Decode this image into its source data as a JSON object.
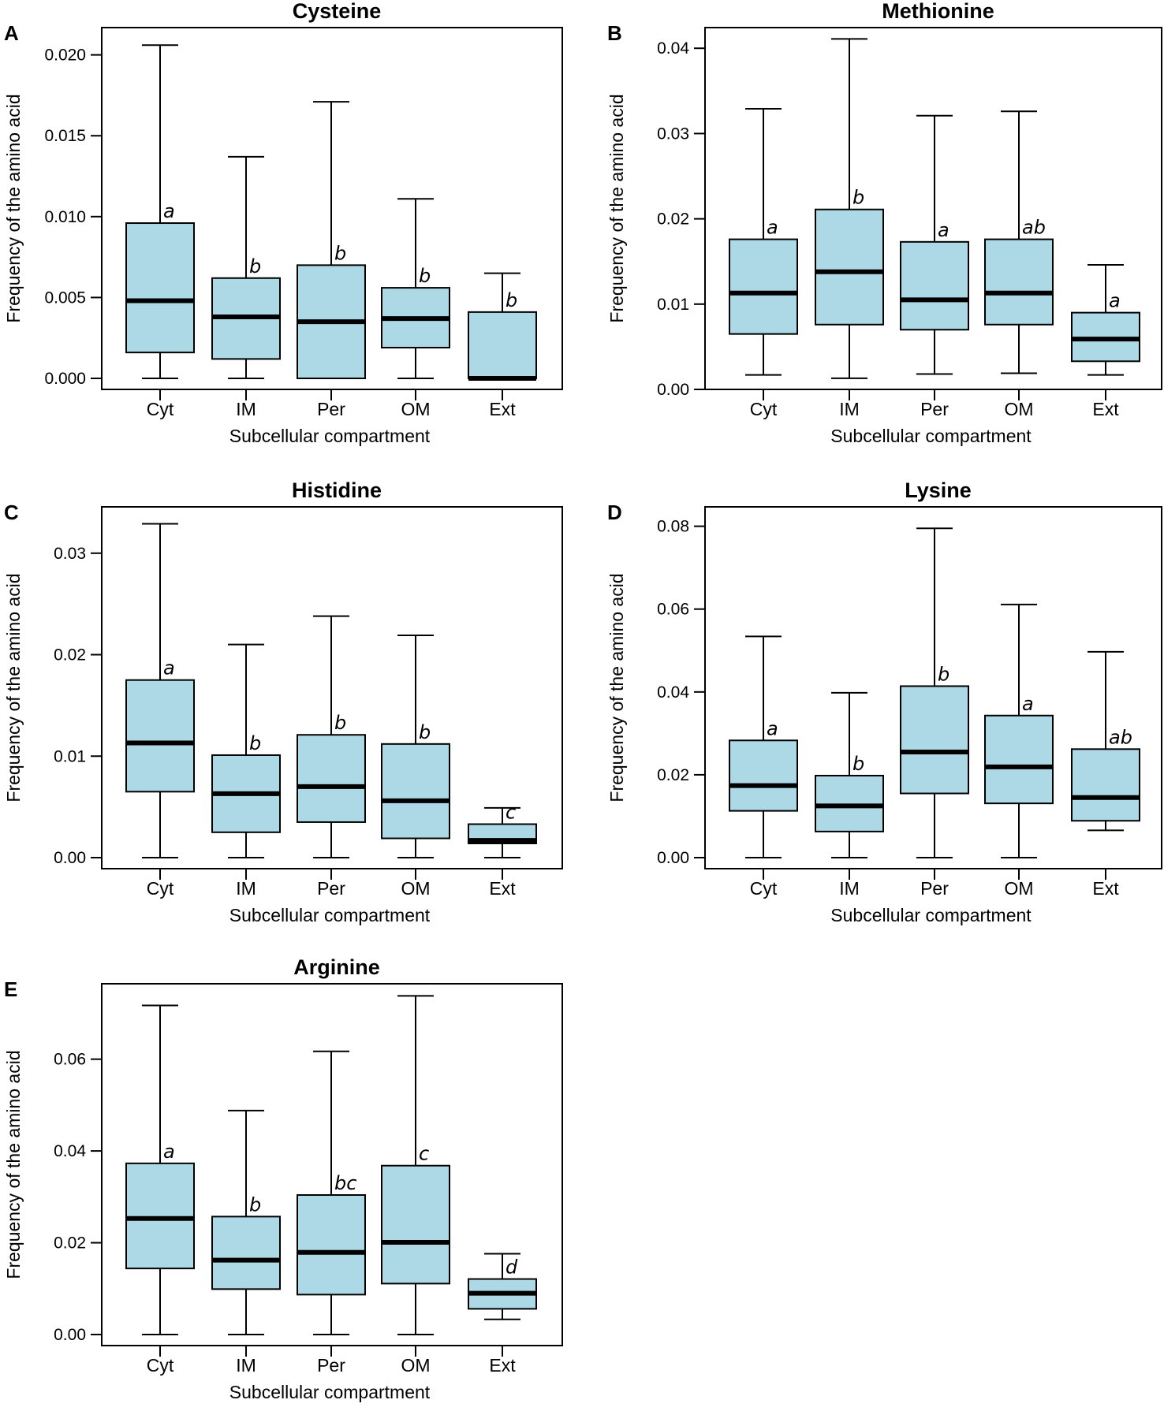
{
  "box_fill": "#add8e6",
  "chart_data": [
    {
      "type": "box",
      "panel": "A",
      "title": "Cysteine",
      "xlabel": "Subcellular compartment",
      "ylabel": "Frequency of the amino acid",
      "ylim": [
        0,
        0.0212
      ],
      "yticks": [
        "0.000",
        "0.005",
        "0.010",
        "0.015",
        "0.020"
      ],
      "categories": [
        "Cyt",
        "IM",
        "Per",
        "OM",
        "Ext"
      ],
      "boxes": [
        {
          "min": 0.0,
          "q1": 0.0016,
          "median": 0.0048,
          "q3": 0.0096,
          "max": 0.0206,
          "sig": "a"
        },
        {
          "min": 0.0,
          "q1": 0.0012,
          "median": 0.0038,
          "q3": 0.0062,
          "max": 0.0137,
          "sig": "b"
        },
        {
          "min": 0.0,
          "q1": 0.0,
          "median": 0.0035,
          "q3": 0.007,
          "max": 0.0171,
          "sig": "b"
        },
        {
          "min": 0.0,
          "q1": 0.0019,
          "median": 0.0037,
          "q3": 0.0056,
          "max": 0.0111,
          "sig": "b"
        },
        {
          "min": 0.0,
          "q1": 0.0,
          "median": 0.0,
          "q3": 0.0041,
          "max": 0.0065,
          "sig": "b"
        }
      ]
    },
    {
      "type": "box",
      "panel": "B",
      "title": "Methionine",
      "xlabel": "Subcellular compartment",
      "ylabel": "Frequency of the amino acid",
      "ylim": [
        0,
        0.0415
      ],
      "yticks": [
        "0.00",
        "0.01",
        "0.02",
        "0.03",
        "0.04"
      ],
      "categories": [
        "Cyt",
        "IM",
        "Per",
        "OM",
        "Ext"
      ],
      "boxes": [
        {
          "min": 0.0017,
          "q1": 0.0065,
          "median": 0.0113,
          "q3": 0.0176,
          "max": 0.0329,
          "sig": "a"
        },
        {
          "min": 0.0013,
          "q1": 0.0076,
          "median": 0.0138,
          "q3": 0.0211,
          "max": 0.0411,
          "sig": "b"
        },
        {
          "min": 0.0018,
          "q1": 0.007,
          "median": 0.0105,
          "q3": 0.0173,
          "max": 0.0321,
          "sig": "a"
        },
        {
          "min": 0.0019,
          "q1": 0.0076,
          "median": 0.0113,
          "q3": 0.0176,
          "max": 0.0326,
          "sig": "ab"
        },
        {
          "min": 0.0017,
          "q1": 0.0033,
          "median": 0.0059,
          "q3": 0.009,
          "max": 0.0146,
          "sig": "a"
        }
      ]
    },
    {
      "type": "box",
      "panel": "C",
      "title": "Histidine",
      "xlabel": "Subcellular compartment",
      "ylabel": "Frequency of the amino acid",
      "ylim": [
        0,
        0.0341
      ],
      "yticks": [
        "0.00",
        "0.01",
        "0.02",
        "0.03"
      ],
      "categories": [
        "Cyt",
        "IM",
        "Per",
        "OM",
        "Ext"
      ],
      "boxes": [
        {
          "min": 0.0,
          "q1": 0.0065,
          "median": 0.0113,
          "q3": 0.0175,
          "max": 0.0329,
          "sig": "a"
        },
        {
          "min": 0.0,
          "q1": 0.0025,
          "median": 0.0063,
          "q3": 0.0101,
          "max": 0.021,
          "sig": "b"
        },
        {
          "min": 0.0,
          "q1": 0.0035,
          "median": 0.007,
          "q3": 0.0121,
          "max": 0.0238,
          "sig": "b"
        },
        {
          "min": 0.0,
          "q1": 0.0019,
          "median": 0.0056,
          "q3": 0.0112,
          "max": 0.0219,
          "sig": "b"
        },
        {
          "min": 0.0,
          "q1": 0.0014,
          "median": 0.0017,
          "q3": 0.0033,
          "max": 0.0049,
          "sig": "c"
        }
      ]
    },
    {
      "type": "box",
      "panel": "D",
      "title": "Lysine",
      "xlabel": "Subcellular compartment",
      "ylabel": "Frequency of the amino acid",
      "ylim": [
        0,
        0.0824
      ],
      "yticks": [
        "0.00",
        "0.02",
        "0.04",
        "0.06",
        "0.08"
      ],
      "categories": [
        "Cyt",
        "IM",
        "Per",
        "OM",
        "Ext"
      ],
      "boxes": [
        {
          "min": 0.0,
          "q1": 0.0113,
          "median": 0.0174,
          "q3": 0.0283,
          "max": 0.0534,
          "sig": "a"
        },
        {
          "min": 0.0,
          "q1": 0.0063,
          "median": 0.0125,
          "q3": 0.0198,
          "max": 0.0398,
          "sig": "b"
        },
        {
          "min": 0.0,
          "q1": 0.0155,
          "median": 0.0255,
          "q3": 0.0414,
          "max": 0.0795,
          "sig": "b"
        },
        {
          "min": 0.0,
          "q1": 0.0131,
          "median": 0.0219,
          "q3": 0.0343,
          "max": 0.0611,
          "sig": "a"
        },
        {
          "min": 0.0066,
          "q1": 0.0089,
          "median": 0.0145,
          "q3": 0.0262,
          "max": 0.0497,
          "sig": "ab"
        }
      ]
    },
    {
      "type": "box",
      "panel": "E",
      "title": "Arginine",
      "xlabel": "Subcellular compartment",
      "ylabel": "Frequency of the amino acid",
      "ylim": [
        0,
        0.0754
      ],
      "yticks": [
        "0.00",
        "0.02",
        "0.04",
        "0.06"
      ],
      "categories": [
        "Cyt",
        "IM",
        "Per",
        "OM",
        "Ext"
      ],
      "boxes": [
        {
          "min": 0.0,
          "q1": 0.0144,
          "median": 0.0253,
          "q3": 0.0373,
          "max": 0.0717,
          "sig": "a"
        },
        {
          "min": 0.0,
          "q1": 0.0099,
          "median": 0.0162,
          "q3": 0.0257,
          "max": 0.0488,
          "sig": "b"
        },
        {
          "min": 0.0,
          "q1": 0.0087,
          "median": 0.0179,
          "q3": 0.0304,
          "max": 0.0617,
          "sig": "bc"
        },
        {
          "min": 0.0,
          "q1": 0.0111,
          "median": 0.0201,
          "q3": 0.0368,
          "max": 0.0738,
          "sig": "c"
        },
        {
          "min": 0.0033,
          "q1": 0.0056,
          "median": 0.009,
          "q3": 0.0121,
          "max": 0.0176,
          "sig": "d"
        }
      ]
    }
  ]
}
